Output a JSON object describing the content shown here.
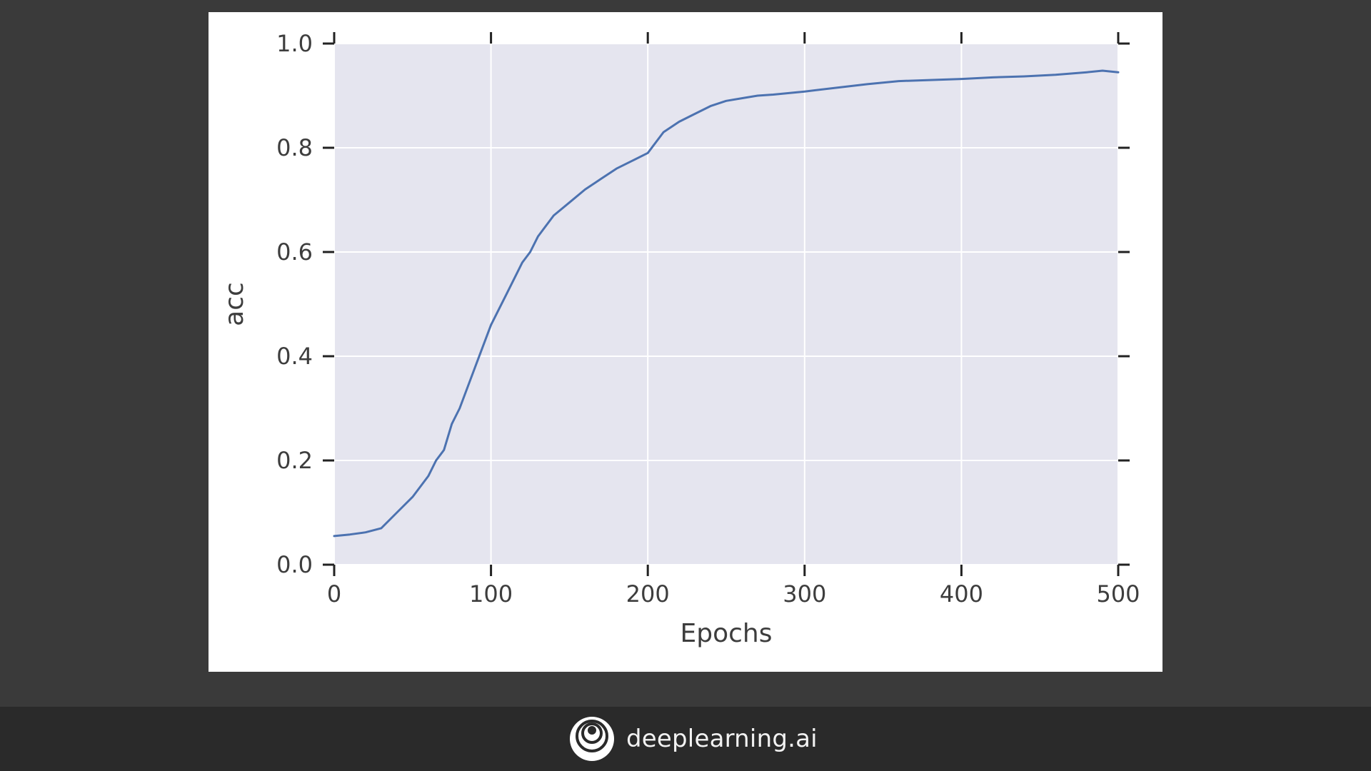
{
  "chart_data": {
    "type": "line",
    "title": "",
    "xlabel": "Epochs",
    "ylabel": "acc",
    "xlim": [
      0,
      500
    ],
    "ylim": [
      0,
      1.0
    ],
    "x_ticks": [
      0,
      100,
      200,
      300,
      400,
      500
    ],
    "y_ticks": [
      0.0,
      0.2,
      0.4,
      0.6,
      0.8,
      1.0
    ],
    "x_tick_labels": [
      "0",
      "100",
      "200",
      "300",
      "400",
      "500"
    ],
    "y_tick_labels": [
      "0.0",
      "0.2",
      "0.4",
      "0.6",
      "0.8",
      "1.0"
    ],
    "grid": true,
    "series": [
      {
        "color": "#4c72b0",
        "x": [
          0,
          10,
          20,
          30,
          40,
          50,
          60,
          65,
          70,
          75,
          80,
          90,
          100,
          110,
          120,
          125,
          130,
          140,
          150,
          160,
          170,
          180,
          190,
          200,
          210,
          220,
          230,
          240,
          250,
          260,
          270,
          280,
          290,
          300,
          320,
          340,
          360,
          380,
          400,
          420,
          440,
          460,
          480,
          490,
          500
        ],
        "y": [
          0.055,
          0.058,
          0.062,
          0.07,
          0.1,
          0.13,
          0.17,
          0.2,
          0.22,
          0.27,
          0.3,
          0.38,
          0.46,
          0.52,
          0.58,
          0.6,
          0.63,
          0.67,
          0.695,
          0.72,
          0.74,
          0.76,
          0.775,
          0.79,
          0.83,
          0.85,
          0.865,
          0.88,
          0.89,
          0.895,
          0.9,
          0.902,
          0.905,
          0.908,
          0.915,
          0.922,
          0.928,
          0.93,
          0.932,
          0.935,
          0.937,
          0.94,
          0.945,
          0.948,
          0.945
        ]
      }
    ]
  },
  "footer": {
    "brand_name": "deeplearning.ai",
    "logo_icon": "deeplearning-logo-icon"
  },
  "colors": {
    "slide_background": "#3a3a3a",
    "footer_background": "#2a2a2a",
    "plot_background": "#e5e5ef",
    "grid": "#ffffff",
    "line": "#4c72b0",
    "text": "#3d3d3d"
  }
}
